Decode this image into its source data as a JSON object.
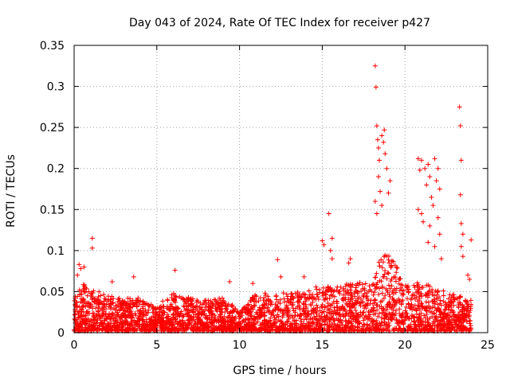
{
  "chart_data": {
    "type": "scatter",
    "title": "Day 043 of 2024, Rate Of TEC Index for receiver p427",
    "xlabel": "GPS time / hours",
    "ylabel": "ROTI / TECUs",
    "xlim": [
      0,
      25
    ],
    "ylim": [
      0,
      0.35
    ],
    "xticks": [
      0,
      5,
      10,
      15,
      20,
      25
    ],
    "xtick_labels": [
      "0",
      "5",
      "10",
      "15",
      "20",
      "25"
    ],
    "yticks": [
      0,
      0.05,
      0.1,
      0.15,
      0.2,
      0.25,
      0.3,
      0.35
    ],
    "ytick_labels": [
      "0",
      "0.05",
      "0.1",
      "0.15",
      "0.2",
      "0.25",
      "0.3",
      "0.35"
    ],
    "grid": true,
    "marker": "plus",
    "marker_color": "#ff0000",
    "outliers": [
      {
        "x": 0.2,
        "y": 0.07
      },
      {
        "x": 0.3,
        "y": 0.083
      },
      {
        "x": 0.4,
        "y": 0.078
      },
      {
        "x": 0.6,
        "y": 0.08
      },
      {
        "x": 1.1,
        "y": 0.115
      },
      {
        "x": 1.1,
        "y": 0.103
      },
      {
        "x": 2.3,
        "y": 0.062
      },
      {
        "x": 3.6,
        "y": 0.068
      },
      {
        "x": 6.1,
        "y": 0.076
      },
      {
        "x": 9.4,
        "y": 0.062
      },
      {
        "x": 10.8,
        "y": 0.06
      },
      {
        "x": 12.3,
        "y": 0.089
      },
      {
        "x": 12.5,
        "y": 0.068
      },
      {
        "x": 13.9,
        "y": 0.068
      },
      {
        "x": 15.0,
        "y": 0.112
      },
      {
        "x": 15.1,
        "y": 0.107
      },
      {
        "x": 15.4,
        "y": 0.145
      },
      {
        "x": 15.5,
        "y": 0.1
      },
      {
        "x": 15.6,
        "y": 0.115
      },
      {
        "x": 15.6,
        "y": 0.09
      },
      {
        "x": 16.6,
        "y": 0.085
      },
      {
        "x": 16.7,
        "y": 0.09
      },
      {
        "x": 18.2,
        "y": 0.325
      },
      {
        "x": 18.25,
        "y": 0.299
      },
      {
        "x": 18.3,
        "y": 0.252
      },
      {
        "x": 18.35,
        "y": 0.235
      },
      {
        "x": 18.4,
        "y": 0.225
      },
      {
        "x": 18.45,
        "y": 0.21
      },
      {
        "x": 18.6,
        "y": 0.24
      },
      {
        "x": 18.7,
        "y": 0.232
      },
      {
        "x": 18.75,
        "y": 0.247
      },
      {
        "x": 18.8,
        "y": 0.218
      },
      {
        "x": 18.4,
        "y": 0.19
      },
      {
        "x": 18.5,
        "y": 0.172
      },
      {
        "x": 18.9,
        "y": 0.2
      },
      {
        "x": 19.0,
        "y": 0.17
      },
      {
        "x": 19.1,
        "y": 0.185
      },
      {
        "x": 18.2,
        "y": 0.16
      },
      {
        "x": 18.3,
        "y": 0.145
      },
      {
        "x": 18.6,
        "y": 0.155
      },
      {
        "x": 20.8,
        "y": 0.212
      },
      {
        "x": 20.9,
        "y": 0.198
      },
      {
        "x": 21.0,
        "y": 0.21
      },
      {
        "x": 21.2,
        "y": 0.2
      },
      {
        "x": 21.4,
        "y": 0.205
      },
      {
        "x": 21.5,
        "y": 0.19
      },
      {
        "x": 21.8,
        "y": 0.212
      },
      {
        "x": 22.0,
        "y": 0.2
      },
      {
        "x": 21.9,
        "y": 0.185
      },
      {
        "x": 22.1,
        "y": 0.175
      },
      {
        "x": 21.3,
        "y": 0.18
      },
      {
        "x": 21.6,
        "y": 0.165
      },
      {
        "x": 20.8,
        "y": 0.15
      },
      {
        "x": 21.0,
        "y": 0.145
      },
      {
        "x": 21.1,
        "y": 0.135
      },
      {
        "x": 21.5,
        "y": 0.13
      },
      {
        "x": 21.7,
        "y": 0.155
      },
      {
        "x": 22.0,
        "y": 0.14
      },
      {
        "x": 22.1,
        "y": 0.12
      },
      {
        "x": 21.8,
        "y": 0.105
      },
      {
        "x": 22.2,
        "y": 0.09
      },
      {
        "x": 21.4,
        "y": 0.11
      },
      {
        "x": 23.3,
        "y": 0.275
      },
      {
        "x": 23.35,
        "y": 0.252
      },
      {
        "x": 23.4,
        "y": 0.21
      },
      {
        "x": 23.35,
        "y": 0.168
      },
      {
        "x": 23.4,
        "y": 0.133
      },
      {
        "x": 23.5,
        "y": 0.12
      },
      {
        "x": 23.4,
        "y": 0.105
      },
      {
        "x": 23.5,
        "y": 0.093
      },
      {
        "x": 24.0,
        "y": 0.113
      },
      {
        "x": 23.8,
        "y": 0.07
      },
      {
        "x": 23.9,
        "y": 0.065
      }
    ],
    "density_profile": [
      {
        "x": 0,
        "y": 0.04
      },
      {
        "x": 0.5,
        "y": 0.06
      },
      {
        "x": 1,
        "y": 0.05
      },
      {
        "x": 2,
        "y": 0.045
      },
      {
        "x": 3,
        "y": 0.04
      },
      {
        "x": 4,
        "y": 0.04
      },
      {
        "x": 5,
        "y": 0.03
      },
      {
        "x": 6,
        "y": 0.045
      },
      {
        "x": 7,
        "y": 0.04
      },
      {
        "x": 8,
        "y": 0.04
      },
      {
        "x": 9,
        "y": 0.04
      },
      {
        "x": 10,
        "y": 0.025
      },
      {
        "x": 11,
        "y": 0.045
      },
      {
        "x": 12,
        "y": 0.045
      },
      {
        "x": 13,
        "y": 0.045
      },
      {
        "x": 14,
        "y": 0.05
      },
      {
        "x": 15,
        "y": 0.055
      },
      {
        "x": 16,
        "y": 0.055
      },
      {
        "x": 17,
        "y": 0.06
      },
      {
        "x": 18,
        "y": 0.06
      },
      {
        "x": 18.7,
        "y": 0.1
      },
      {
        "x": 19.5,
        "y": 0.08
      },
      {
        "x": 20,
        "y": 0.055
      },
      {
        "x": 21,
        "y": 0.06
      },
      {
        "x": 22,
        "y": 0.05
      },
      {
        "x": 23,
        "y": 0.045
      },
      {
        "x": 24,
        "y": 0.04
      }
    ],
    "time_range": [
      0,
      24
    ]
  }
}
